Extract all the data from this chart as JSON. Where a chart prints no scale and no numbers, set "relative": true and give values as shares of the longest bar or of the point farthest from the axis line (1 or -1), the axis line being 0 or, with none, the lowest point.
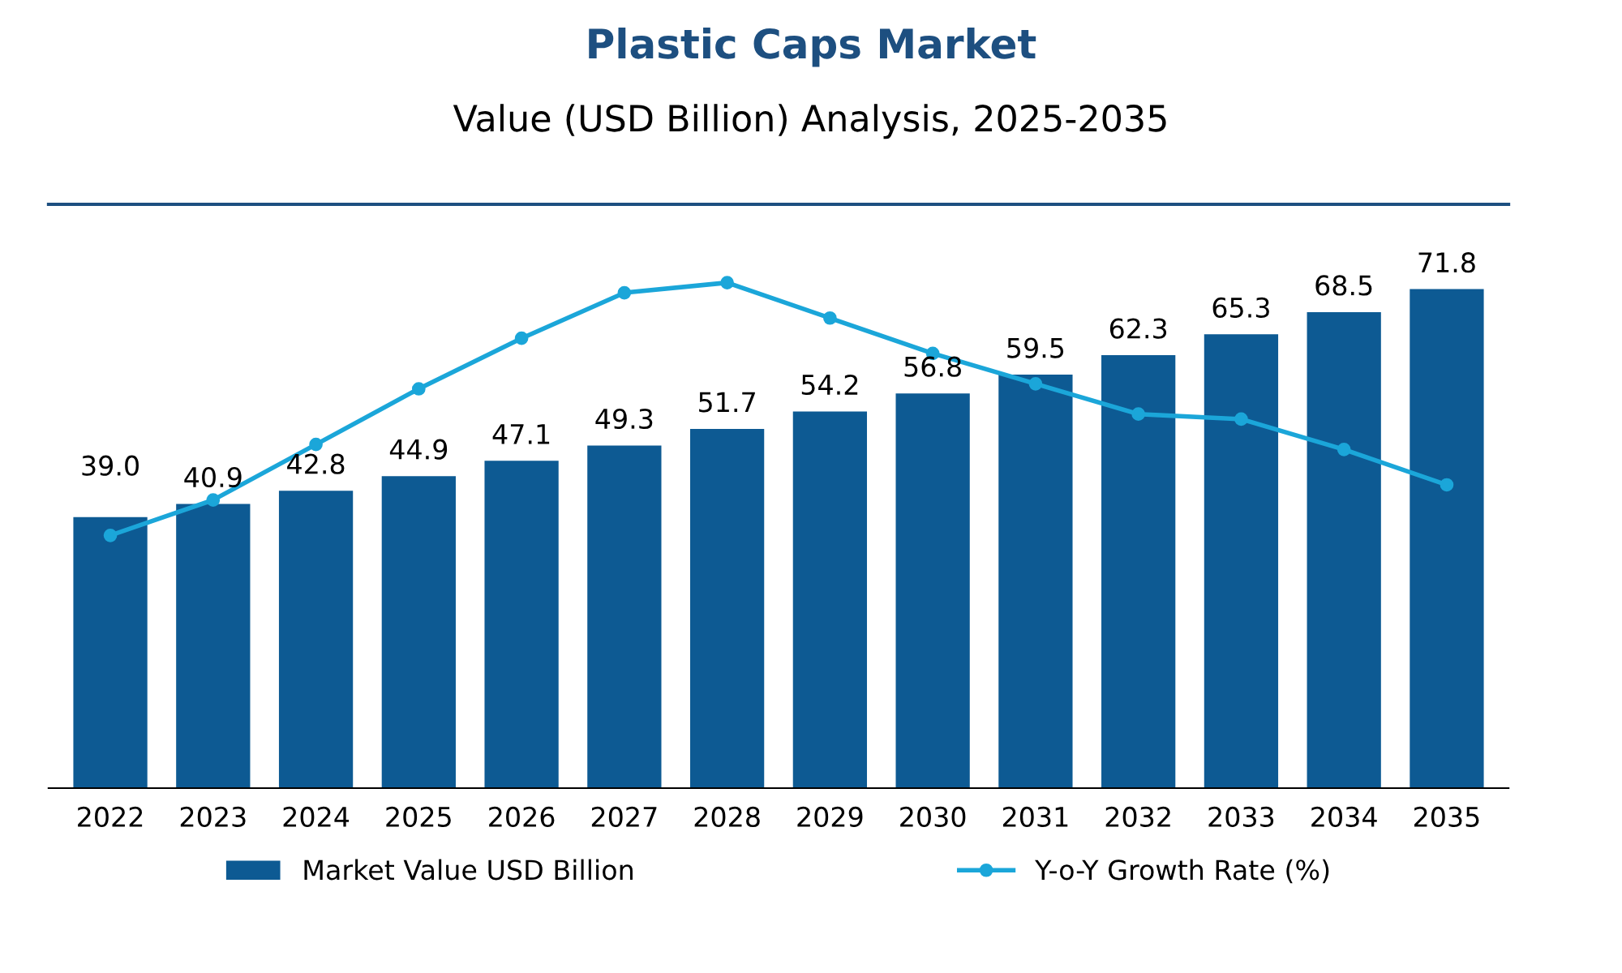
{
  "chart_data": [
    {
      "type": "bar",
      "title": "Plastic Caps Market",
      "subtitle": "Value (USD Billion) Analysis, 2025-2035",
      "categories": [
        "2022",
        "2023",
        "2024",
        "2025",
        "2026",
        "2027",
        "2028",
        "2029",
        "2030",
        "2031",
        "2032",
        "2033",
        "2034",
        "2035"
      ],
      "data_labels": true,
      "tick_labels": "x",
      "legend": "bottom",
      "series": [
        {
          "name": "Market Value USD Billion",
          "color": "#0d5a93",
          "values": [
            39.0,
            40.9,
            42.8,
            44.9,
            47.1,
            49.3,
            51.7,
            54.2,
            56.8,
            59.5,
            62.3,
            65.3,
            68.5,
            71.8
          ],
          "value_labels": [
            "39.0",
            "40.9",
            "42.8",
            "44.9",
            "47.1",
            "49.3",
            "51.7",
            "54.2",
            "56.8",
            "59.5",
            "62.3",
            "65.3",
            "68.5",
            "71.8"
          ]
        }
      ]
    },
    {
      "type": "line",
      "relative": true,
      "tick_labels": false,
      "legend": "bottom",
      "marker": "circle",
      "line_style": "solid",
      "categories": [
        "2022",
        "2023",
        "2024",
        "2025",
        "2026",
        "2027",
        "2028",
        "2029",
        "2030",
        "2031",
        "2032",
        "2033",
        "2034",
        "2035"
      ],
      "series": [
        {
          "name": "Y-o-Y Growth Rate (%)",
          "color": "#1ba6d9",
          "values": [
            0.5,
            0.57,
            0.68,
            0.79,
            0.89,
            0.98,
            1.0,
            0.93,
            0.86,
            0.8,
            0.74,
            0.73,
            0.67,
            0.6
          ]
        }
      ]
    }
  ]
}
